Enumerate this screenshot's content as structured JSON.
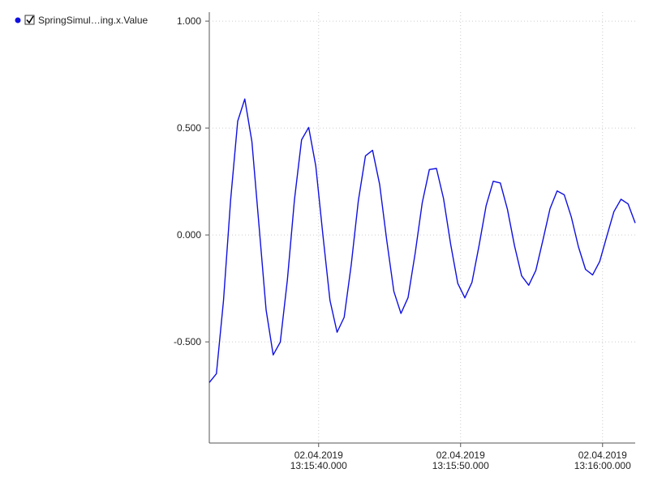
{
  "chart_data": {
    "type": "line",
    "series": [
      {
        "name": "SpringSimul…ing.x.Value",
        "color": "#1010e0",
        "x": [
          "2019-04-02T13:15:32.300",
          "2019-04-02T13:15:32.800",
          "2019-04-02T13:15:33.300",
          "2019-04-02T13:15:33.800",
          "2019-04-02T13:15:34.300",
          "2019-04-02T13:15:34.800",
          "2019-04-02T13:15:35.300",
          "2019-04-02T13:15:35.800",
          "2019-04-02T13:15:36.300",
          "2019-04-02T13:15:36.800",
          "2019-04-02T13:15:37.300",
          "2019-04-02T13:15:37.800",
          "2019-04-02T13:15:38.300",
          "2019-04-02T13:15:38.800",
          "2019-04-02T13:15:39.300",
          "2019-04-02T13:15:39.800",
          "2019-04-02T13:15:40.300",
          "2019-04-02T13:15:40.800",
          "2019-04-02T13:15:41.300",
          "2019-04-02T13:15:41.800",
          "2019-04-02T13:15:42.300",
          "2019-04-02T13:15:42.800",
          "2019-04-02T13:15:43.300",
          "2019-04-02T13:15:43.800",
          "2019-04-02T13:15:44.300",
          "2019-04-02T13:15:44.800",
          "2019-04-02T13:15:45.300",
          "2019-04-02T13:15:45.800",
          "2019-04-02T13:15:46.300",
          "2019-04-02T13:15:46.800",
          "2019-04-02T13:15:47.300",
          "2019-04-02T13:15:47.800",
          "2019-04-02T13:15:48.300",
          "2019-04-02T13:15:48.800",
          "2019-04-02T13:15:49.300",
          "2019-04-02T13:15:49.800",
          "2019-04-02T13:15:50.300",
          "2019-04-02T13:15:50.800",
          "2019-04-02T13:15:51.300",
          "2019-04-02T13:15:51.800",
          "2019-04-02T13:15:52.300",
          "2019-04-02T13:15:52.800",
          "2019-04-02T13:15:53.300",
          "2019-04-02T13:15:53.800",
          "2019-04-02T13:15:54.300",
          "2019-04-02T13:15:54.800",
          "2019-04-02T13:15:55.300",
          "2019-04-02T13:15:55.800",
          "2019-04-02T13:15:56.300",
          "2019-04-02T13:15:56.800",
          "2019-04-02T13:15:57.300",
          "2019-04-02T13:15:57.800",
          "2019-04-02T13:15:58.300",
          "2019-04-02T13:15:58.800",
          "2019-04-02T13:15:59.300",
          "2019-04-02T13:15:59.800",
          "2019-04-02T13:16:00.300",
          "2019-04-02T13:16:00.800",
          "2019-04-02T13:16:01.300",
          "2019-04-02T13:16:01.800",
          "2019-04-02T13:16:02.300"
        ],
        "values": [
          -0.69,
          -0.649,
          -0.307,
          0.162,
          0.532,
          0.636,
          0.437,
          0.045,
          -0.35,
          -0.561,
          -0.501,
          -0.21,
          0.166,
          0.445,
          0.503,
          0.323,
          0.001,
          -0.306,
          -0.455,
          -0.385,
          -0.138,
          0.161,
          0.37,
          0.396,
          0.236,
          -0.026,
          -0.264,
          -0.367,
          -0.293,
          -0.086,
          0.151,
          0.306,
          0.311,
          0.17,
          -0.043,
          -0.226,
          -0.294,
          -0.222,
          -0.05,
          0.137,
          0.251,
          0.243,
          0.12,
          -0.051,
          -0.191,
          -0.235,
          -0.166,
          -0.024,
          0.123,
          0.206,
          0.188,
          0.084,
          -0.055,
          -0.161,
          -0.187,
          -0.124,
          -0.006,
          0.109,
          0.167,
          0.145,
          0.056
        ]
      }
    ],
    "xlim": [
      "2019-04-02T13:15:32.300",
      "2019-04-02T13:16:02.300"
    ],
    "xticks": [
      {
        "value": "2019-04-02T13:15:40.000",
        "label": [
          "02.04.2019",
          "13:15:40.000"
        ]
      },
      {
        "value": "2019-04-02T13:15:50.000",
        "label": [
          "02.04.2019",
          "13:15:50.000"
        ]
      },
      {
        "value": "2019-04-02T13:16:00.000",
        "label": [
          "02.04.2019",
          "13:16:00.000"
        ]
      }
    ],
    "ylim": [
      -0.973,
      1.042
    ],
    "yticks": [
      {
        "value": -0.5,
        "label": "-0.500"
      },
      {
        "value": 0,
        "label": "0.000"
      },
      {
        "value": 0.5,
        "label": "0.500"
      },
      {
        "value": 1,
        "label": "1.000"
      }
    ],
    "grid": true
  }
}
